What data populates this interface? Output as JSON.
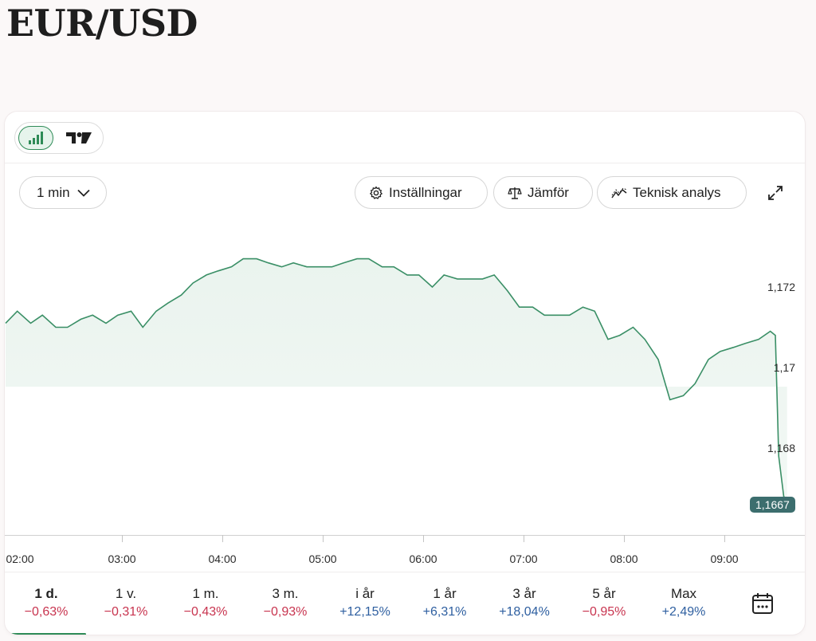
{
  "title": "EUR/USD",
  "toolbar": {
    "interval": "1 min",
    "settings_label": "Inställningar",
    "compare_label": "Jämför",
    "analysis_label": "Teknisk analys"
  },
  "colors": {
    "line": "#2e8b57",
    "negative": "#c8344f",
    "positive": "#2e5fa0",
    "price_tag": "#3c6e6e"
  },
  "chart_data": {
    "type": "area",
    "y_ticks": [
      "1,172",
      "1,17",
      "1,168"
    ],
    "x_ticks": [
      "02:00",
      "03:00",
      "04:00",
      "05:00",
      "06:00",
      "07:00",
      "08:00",
      "09:00"
    ],
    "last_price": "1,1667",
    "ylim": [
      1.1655,
      1.1745
    ],
    "series": [
      {
        "x": [
          "02:00",
          "02:07",
          "02:15",
          "02:22",
          "02:30",
          "02:37",
          "02:45",
          "02:52",
          "03:00",
          "03:07",
          "03:15",
          "03:22",
          "03:30",
          "03:37",
          "03:45",
          "03:52",
          "04:00",
          "04:07",
          "04:15",
          "04:22",
          "04:30",
          "04:37",
          "04:45",
          "04:52",
          "05:00",
          "05:07",
          "05:15",
          "05:22",
          "05:30",
          "05:37",
          "05:45",
          "05:52",
          "06:00",
          "06:07",
          "06:15",
          "06:22",
          "06:30",
          "06:37",
          "06:45",
          "06:52",
          "07:00",
          "07:07",
          "07:15",
          "07:22",
          "07:30",
          "07:37",
          "07:45",
          "07:52",
          "08:00",
          "08:07",
          "08:15",
          "08:22",
          "08:30",
          "08:37",
          "08:45",
          "08:52",
          "09:00",
          "09:07",
          "09:15",
          "09:22",
          "09:30",
          "09:37",
          "09:40",
          "09:42",
          "09:45",
          "09:47"
        ],
        "values": [
          1.1711,
          1.1714,
          1.1711,
          1.1713,
          1.171,
          1.171,
          1.1712,
          1.1713,
          1.1711,
          1.1713,
          1.1714,
          1.171,
          1.1714,
          1.1716,
          1.1718,
          1.1721,
          1.1723,
          1.1724,
          1.1725,
          1.1727,
          1.1727,
          1.1726,
          1.1725,
          1.1726,
          1.1725,
          1.1725,
          1.1725,
          1.1726,
          1.1727,
          1.1727,
          1.1725,
          1.1725,
          1.1723,
          1.1723,
          1.172,
          1.1723,
          1.1722,
          1.1722,
          1.1722,
          1.1723,
          1.1719,
          1.1715,
          1.1715,
          1.1713,
          1.1713,
          1.1713,
          1.1715,
          1.1714,
          1.1707,
          1.1708,
          1.171,
          1.1707,
          1.1702,
          1.1692,
          1.1693,
          1.1696,
          1.1702,
          1.1704,
          1.1705,
          1.1706,
          1.1707,
          1.1709,
          1.1708,
          1.1678,
          1.1668,
          1.1667
        ]
      }
    ]
  },
  "periods": [
    {
      "label": "1 d.",
      "change": "−0,63%",
      "sign": "neg",
      "active": true
    },
    {
      "label": "1 v.",
      "change": "−0,31%",
      "sign": "neg"
    },
    {
      "label": "1 m.",
      "change": "−0,43%",
      "sign": "neg"
    },
    {
      "label": "3 m.",
      "change": "−0,93%",
      "sign": "neg"
    },
    {
      "label": "i år",
      "change": "+12,15%",
      "sign": "pos"
    },
    {
      "label": "1 år",
      "change": "+6,31%",
      "sign": "pos"
    },
    {
      "label": "3 år",
      "change": "+18,04%",
      "sign": "pos"
    },
    {
      "label": "5 år",
      "change": "−0,95%",
      "sign": "neg"
    },
    {
      "label": "Max",
      "change": "+2,49%",
      "sign": "pos"
    }
  ]
}
